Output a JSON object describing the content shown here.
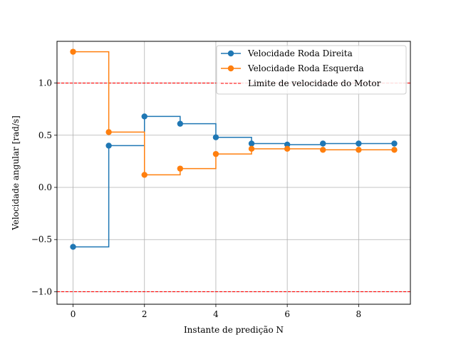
{
  "chart_data": {
    "type": "line",
    "step": "post",
    "xlabel": "Instante de predição N",
    "ylabel": "Velocidade angular [rad/s]",
    "xlim": [
      -0.45,
      9.45
    ],
    "ylim": [
      -1.12,
      1.4
    ],
    "x_ticks": [
      0,
      2,
      4,
      6,
      8
    ],
    "y_ticks": [
      -1.0,
      -0.5,
      0.0,
      0.5,
      1.0
    ],
    "x_tick_labels": [
      "0",
      "2",
      "4",
      "6",
      "8"
    ],
    "y_tick_labels": [
      "−1.0",
      "−0.5",
      "0.0",
      "0.5",
      "1.0"
    ],
    "grid": true,
    "legend_position": "top-right",
    "x": [
      0,
      1,
      2,
      3,
      4,
      5,
      6,
      7,
      8,
      9
    ],
    "series": [
      {
        "name": "Velocidade Roda Direita",
        "color": "#1f77b4",
        "marker": "circle",
        "values": [
          -0.57,
          0.4,
          0.68,
          0.61,
          0.48,
          0.42,
          0.41,
          0.42,
          0.42,
          0.42
        ]
      },
      {
        "name": "Velocidade Roda Esquerda",
        "color": "#ff7f0e",
        "marker": "circle",
        "values": [
          1.3,
          0.53,
          0.12,
          0.18,
          0.32,
          0.37,
          0.37,
          0.36,
          0.36,
          0.36
        ]
      }
    ],
    "reference_lines": [
      {
        "name": "Limite de velocidade do Motor",
        "color": "#ff0000",
        "style": "dashed",
        "values": [
          1.0,
          -1.0
        ]
      }
    ]
  }
}
